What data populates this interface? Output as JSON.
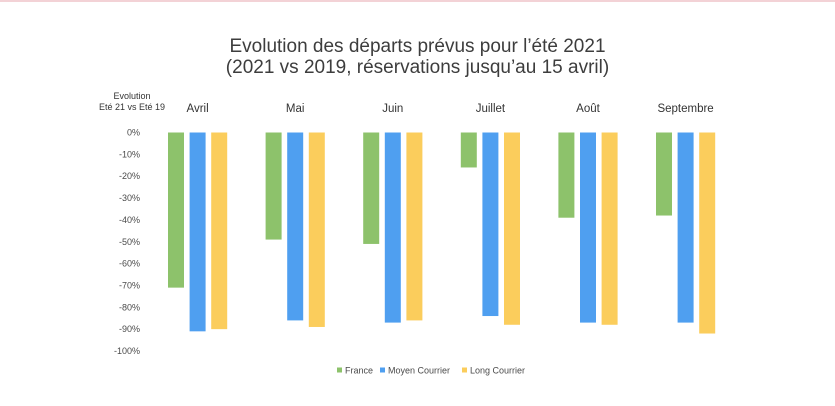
{
  "chart_data": {
    "type": "bar",
    "title": "Evolution des départs prévus pour l’été 2021",
    "subtitle": "(2021 vs 2019, réservations jusqu’au 15 avril)",
    "ylabel_lines": [
      "Evolution",
      "Eté 21 vs Eté 19"
    ],
    "categories": [
      "Avril",
      "Mai",
      "Juin",
      "Juillet",
      "Août",
      "Septembre"
    ],
    "series": [
      {
        "name": "France",
        "color": "#8dc26b",
        "values": [
          -71,
          -49,
          -51,
          -16,
          -39,
          -38
        ]
      },
      {
        "name": "Moyen Courrier",
        "color": "#4f9ff0",
        "values": [
          -91,
          -86,
          -87,
          -84,
          -87,
          -87
        ]
      },
      {
        "name": "Long Courrier",
        "color": "#fbcd5c",
        "values": [
          -90,
          -89,
          -86,
          -88,
          -88,
          -92
        ]
      }
    ],
    "ylim": [
      -100,
      0
    ],
    "yticks": [
      "0%",
      "-10%",
      "-20%",
      "-30%",
      "-40%",
      "-50%",
      "-60%",
      "-70%",
      "-80%",
      "-90%",
      "-100%"
    ],
    "grid": false,
    "legend_position": "bottom-center"
  }
}
